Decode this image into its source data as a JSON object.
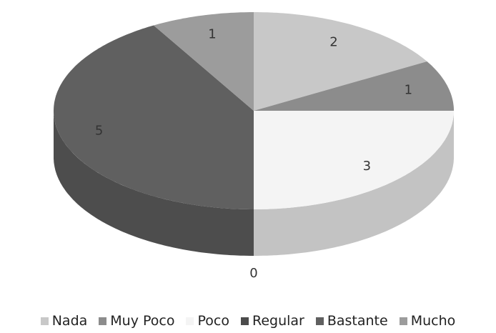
{
  "chart_data": {
    "type": "pie",
    "categories": [
      "Nada",
      "Muy Poco",
      "Poco",
      "Regular",
      "Bastante",
      "Mucho"
    ],
    "values": [
      2,
      1,
      3,
      0,
      5,
      1
    ],
    "colors": [
      "#c8c8c8",
      "#8c8c8c",
      "#f4f4f4",
      "#4c4c4c",
      "#606060",
      "#9c9c9c"
    ],
    "legend": "bottom"
  }
}
